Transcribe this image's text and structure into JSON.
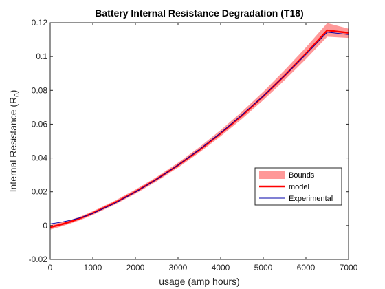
{
  "chart_data": {
    "type": "line",
    "title": "Battery Internal Resistance Degradation (T18)",
    "xlabel": "usage (amp hours)",
    "ylabel_main": "Internal Resistance (R",
    "ylabel_sub": "0",
    "ylabel_close": ")",
    "xlim": [
      0,
      7000
    ],
    "ylim": [
      -0.02,
      0.12
    ],
    "x_ticks": [
      0,
      1000,
      2000,
      3000,
      4000,
      5000,
      6000,
      7000
    ],
    "x_tick_labels": [
      "0",
      "1000",
      "2000",
      "3000",
      "4000",
      "5000",
      "6000",
      "7000"
    ],
    "y_ticks": [
      -0.02,
      0,
      0.02,
      0.04,
      0.06,
      0.08,
      0.1,
      0.12
    ],
    "y_tick_labels": [
      "-0.02",
      "0",
      "0.02",
      "0.04",
      "0.06",
      "0.08",
      "0.1",
      "0.12"
    ],
    "grid": false,
    "legend_position": "lower-right",
    "x": [
      0,
      250,
      500,
      750,
      1000,
      1500,
      2000,
      2500,
      3000,
      3500,
      4000,
      4500,
      5000,
      5500,
      6000,
      6500,
      7000
    ],
    "series": [
      {
        "name": "Bounds",
        "kind": "band",
        "color": "#ff9999",
        "upper": [
          0.0003,
          0.0018,
          0.0035,
          0.0058,
          0.0085,
          0.0145,
          0.0213,
          0.0288,
          0.0372,
          0.0464,
          0.0565,
          0.0674,
          0.0792,
          0.0919,
          0.1054,
          0.1198,
          0.1165
        ],
        "lower": [
          -0.0024,
          -0.0006,
          0.0014,
          0.0037,
          0.0063,
          0.0122,
          0.0188,
          0.0262,
          0.0343,
          0.0432,
          0.0528,
          0.0631,
          0.0742,
          0.086,
          0.0985,
          0.1117,
          0.111
        ]
      },
      {
        "name": "model",
        "kind": "line",
        "color": "#ff0000",
        "values": [
          -0.001,
          0.0006,
          0.0025,
          0.0048,
          0.0074,
          0.0133,
          0.02,
          0.0275,
          0.0357,
          0.0447,
          0.0545,
          0.0651,
          0.0765,
          0.0887,
          0.1017,
          0.1155,
          0.114
        ]
      },
      {
        "name": "Experimental",
        "kind": "line",
        "color": "#0000aa",
        "values": [
          0.001,
          0.002,
          0.0033,
          0.005,
          0.0072,
          0.013,
          0.0198,
          0.0274,
          0.0358,
          0.045,
          0.0549,
          0.0655,
          0.0767,
          0.0887,
          0.1012,
          0.1144,
          0.113
        ]
      }
    ]
  },
  "colors": {
    "axes": "#262626",
    "background": "#ffffff",
    "legend_border": "#262626"
  }
}
